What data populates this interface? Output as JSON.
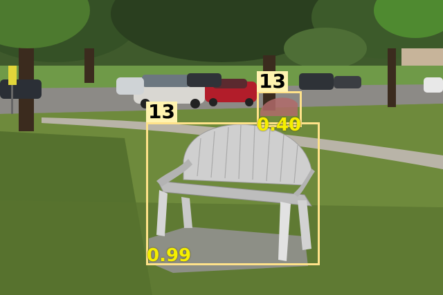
{
  "detections": [
    {
      "class_id": "13",
      "score": "0.99",
      "color": "#ffe28a"
    },
    {
      "class_id": "13",
      "score": "0.40",
      "color": "#ffe28a"
    }
  ],
  "scene": {
    "icons": [
      "tree",
      "bench",
      "car",
      "lamp-post",
      "sign"
    ],
    "colors": {
      "grass": "#6f8c3f",
      "path": "#b9b4a8",
      "sky": "#dfe9f0",
      "bench": "#cfcfcf"
    }
  }
}
